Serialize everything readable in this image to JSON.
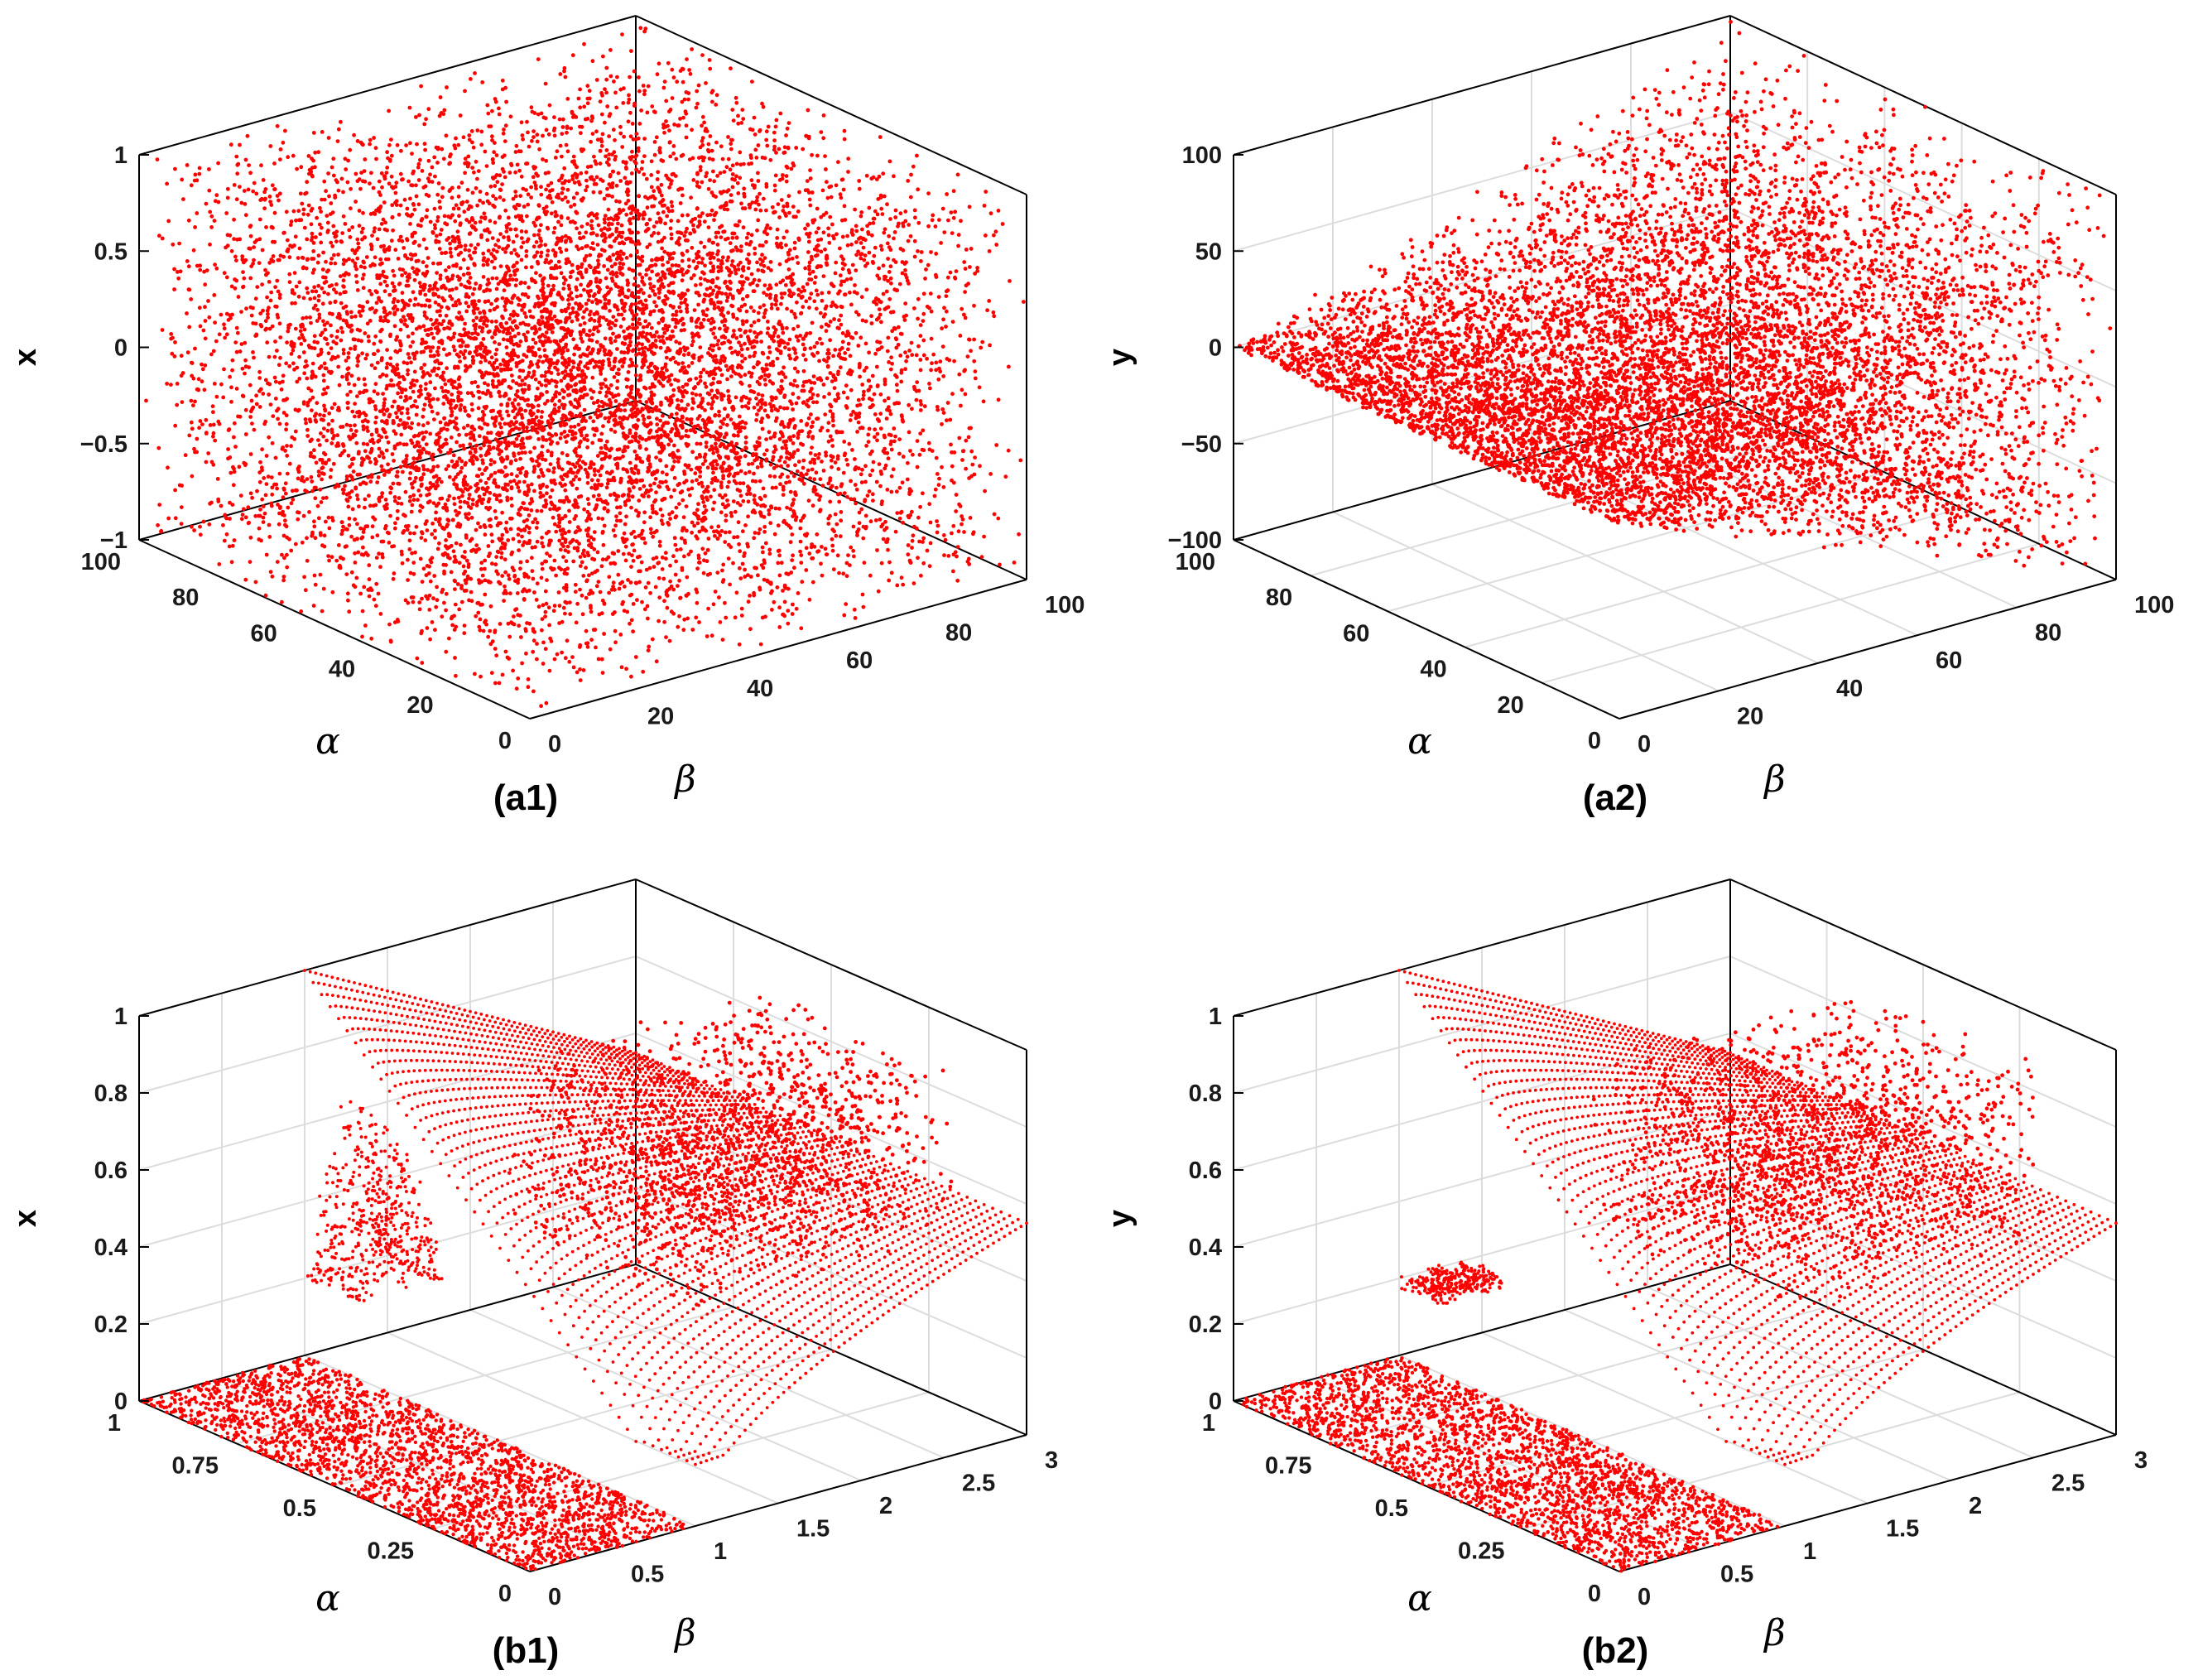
{
  "figure": {
    "colors": {
      "marker": "#ff0000",
      "axis": "#000000",
      "grid": "#dcdcdc"
    }
  },
  "chart_data": [
    {
      "type": "scatter3d",
      "panel_label": "(a1)",
      "xlabel": "α",
      "ylabel": "β",
      "zlabel": "x",
      "xlim": [
        0,
        100
      ],
      "ylim": [
        0,
        100
      ],
      "zlim": [
        -1,
        1
      ],
      "alpha_ticks": [
        "0",
        "20",
        "40",
        "60",
        "80",
        "100"
      ],
      "beta_ticks": [
        "0",
        "20",
        "40",
        "60",
        "80",
        "100"
      ],
      "z_ticks": [
        "−1",
        "−0.5",
        "0",
        "0.5",
        "1"
      ],
      "grid": false,
      "description_of_points": "uniform random cloud filling the whole box",
      "point_count": 9000
    },
    {
      "type": "scatter3d",
      "panel_label": "(a2)",
      "xlabel": "α",
      "ylabel": "β",
      "zlabel": "y",
      "xlim": [
        0,
        100
      ],
      "ylim": [
        0,
        100
      ],
      "zlim": [
        -100,
        100
      ],
      "alpha_ticks": [
        "0",
        "20",
        "40",
        "60",
        "80",
        "100"
      ],
      "beta_ticks": [
        "0",
        "20",
        "40",
        "60",
        "80",
        "100"
      ],
      "z_ticks": [
        "−100",
        "−50",
        "0",
        "50",
        "100"
      ],
      "grid": true,
      "description_of_points": "y uniformly distributed between -beta and +beta",
      "point_count": 9000
    },
    {
      "type": "scatter3d",
      "panel_label": "(b1)",
      "xlabel": "α",
      "ylabel": "β",
      "zlabel": "x",
      "xlim": [
        0,
        1
      ],
      "ylim": [
        0,
        3
      ],
      "zlim": [
        0,
        1
      ],
      "alpha_ticks": [
        "0",
        "0.25",
        "0.5",
        "0.75",
        "1"
      ],
      "beta_ticks": [
        "0",
        "0.5",
        "1",
        "1.5",
        "2",
        "2.5",
        "3"
      ],
      "z_ticks": [
        "0",
        "0.2",
        "0.4",
        "0.6",
        "0.8",
        "1"
      ],
      "grid": true,
      "description_of_points": "x = 0 for beta < 1; for beta > 1 a surface rising toward 1 near beta = 1 and alpha = 1, decaying to about 0.55 at beta = 3, with scattered chaotic points near beta 1-2",
      "point_count": 9000
    },
    {
      "type": "scatter3d",
      "panel_label": "(b2)",
      "xlabel": "α",
      "ylabel": "β",
      "zlabel": "y",
      "xlim": [
        0,
        1
      ],
      "ylim": [
        0,
        3
      ],
      "zlim": [
        0,
        1
      ],
      "alpha_ticks": [
        "0",
        "0.25",
        "0.5",
        "0.75",
        "1"
      ],
      "beta_ticks": [
        "0",
        "0.5",
        "1",
        "1.5",
        "2",
        "2.5",
        "3"
      ],
      "z_ticks": [
        "0",
        "0.2",
        "0.4",
        "0.6",
        "0.8",
        "1"
      ],
      "grid": true,
      "description_of_points": "y = 0 for beta < 1; for beta > 1 a surface similar to panel (b1) with scattered chaotic points near beta 1-2",
      "point_count": 9000
    }
  ]
}
